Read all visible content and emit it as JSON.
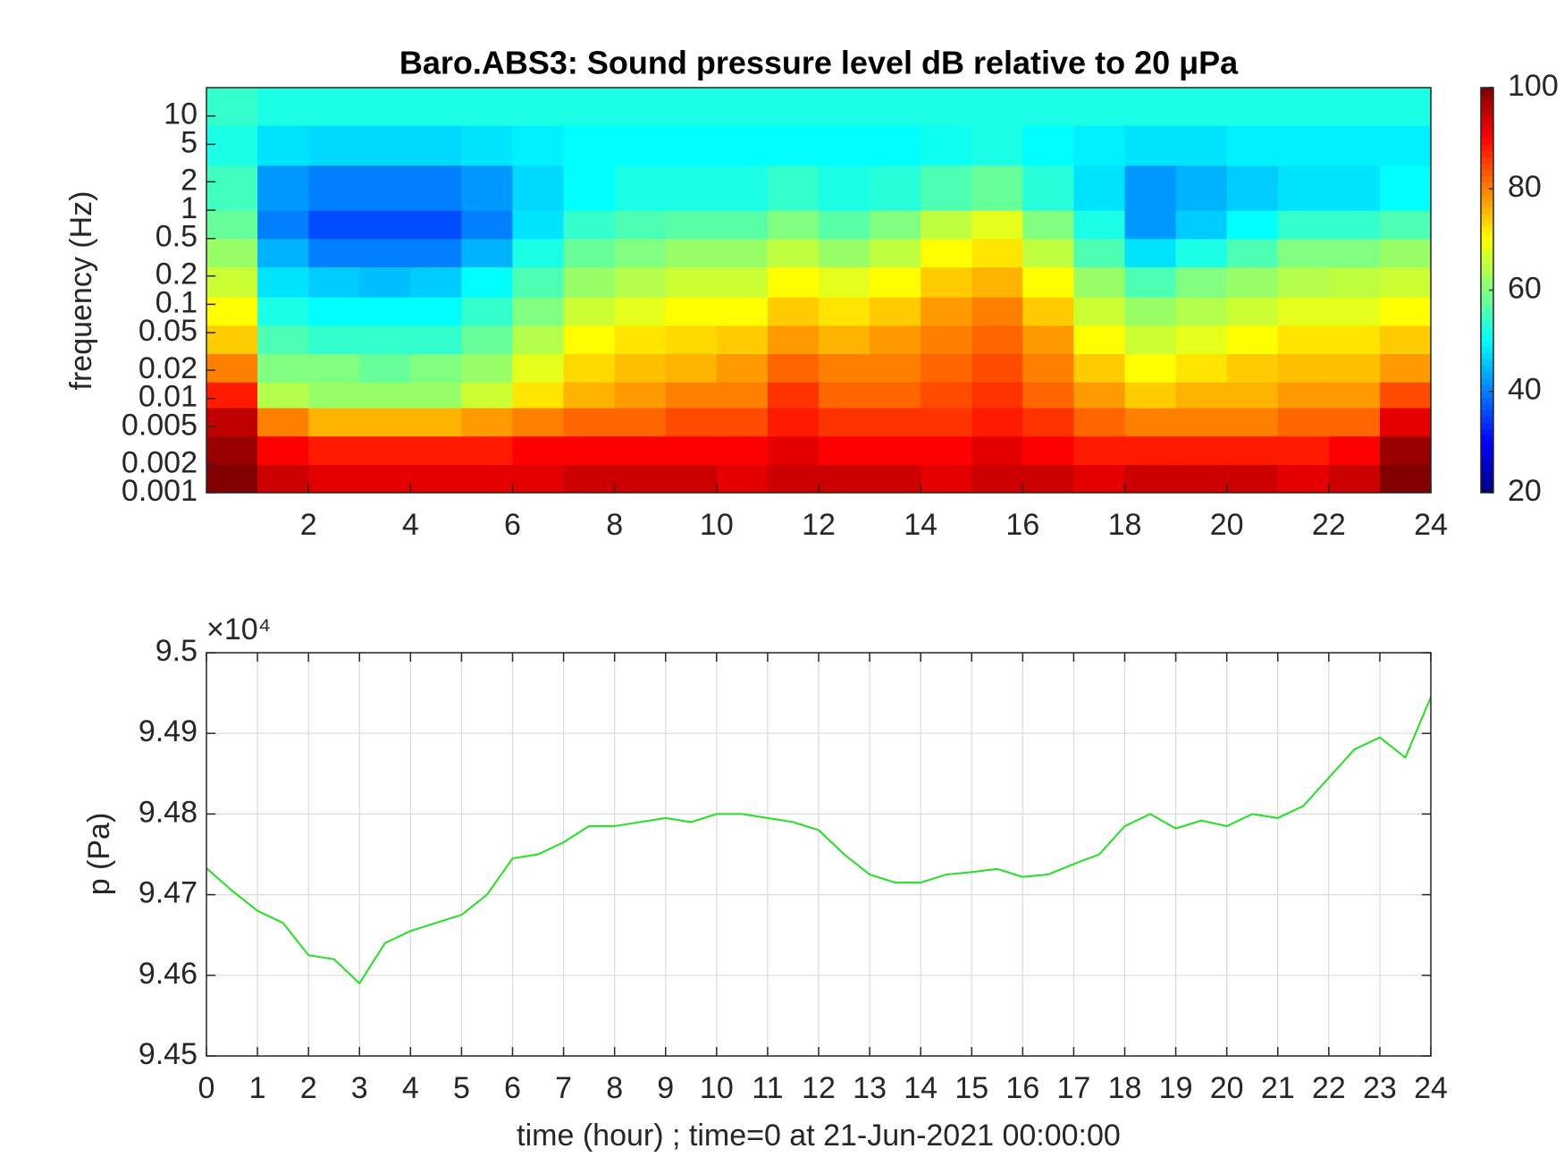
{
  "chart_data": [
    {
      "type": "heatmap",
      "title": "Baro.ABS3: Sound pressure level dB relative to 20 μPa",
      "y_label": "frequency (Hz)",
      "xbins": [
        0,
        1,
        2,
        3,
        4,
        5,
        6,
        7,
        8,
        9,
        10,
        11,
        12,
        13,
        14,
        15,
        16,
        17,
        18,
        19,
        20,
        21,
        22,
        23,
        24
      ],
      "ybins": [
        0.001,
        0.002,
        0.004,
        0.008,
        0.015,
        0.03,
        0.06,
        0.12,
        0.25,
        0.5,
        1,
        3,
        8,
        20
      ],
      "values": [
        [
          100,
          94,
          92,
          92,
          92,
          92,
          92,
          94,
          94,
          94,
          92,
          94,
          94,
          94,
          92,
          94,
          94,
          92,
          94,
          94,
          94,
          92,
          94,
          100
        ],
        [
          98,
          90,
          88,
          88,
          88,
          88,
          90,
          90,
          90,
          90,
          90,
          92,
          90,
          90,
          90,
          92,
          90,
          88,
          88,
          88,
          88,
          88,
          90,
          98
        ],
        [
          95,
          80,
          76,
          76,
          76,
          78,
          80,
          82,
          82,
          84,
          84,
          88,
          86,
          86,
          86,
          88,
          86,
          82,
          80,
          80,
          80,
          82,
          82,
          92
        ],
        [
          88,
          64,
          62,
          62,
          62,
          66,
          72,
          76,
          78,
          80,
          80,
          86,
          82,
          82,
          84,
          86,
          82,
          78,
          74,
          76,
          76,
          78,
          78,
          84
        ],
        [
          80,
          60,
          60,
          58,
          60,
          62,
          68,
          73,
          75,
          76,
          78,
          82,
          80,
          80,
          82,
          84,
          80,
          74,
          70,
          72,
          74,
          75,
          75,
          78
        ],
        [
          74,
          56,
          54,
          54,
          54,
          58,
          64,
          70,
          72,
          73,
          74,
          78,
          76,
          78,
          80,
          82,
          78,
          70,
          66,
          68,
          70,
          72,
          72,
          74
        ],
        [
          70,
          52,
          50,
          50,
          50,
          54,
          60,
          66,
          68,
          70,
          70,
          74,
          72,
          74,
          78,
          80,
          74,
          66,
          62,
          64,
          66,
          68,
          68,
          70
        ],
        [
          66,
          48,
          46,
          45,
          46,
          50,
          56,
          62,
          64,
          66,
          66,
          70,
          68,
          70,
          74,
          76,
          70,
          62,
          56,
          60,
          62,
          64,
          65,
          66
        ],
        [
          62,
          44,
          40,
          40,
          40,
          44,
          52,
          58,
          60,
          62,
          62,
          65,
          62,
          65,
          70,
          72,
          65,
          56,
          48,
          52,
          56,
          60,
          60,
          62
        ],
        [
          58,
          40,
          36,
          36,
          36,
          40,
          48,
          54,
          56,
          57,
          57,
          60,
          57,
          60,
          65,
          68,
          60,
          52,
          42,
          46,
          50,
          54,
          54,
          56
        ],
        [
          55,
          42,
          40,
          40,
          40,
          42,
          47,
          50,
          52,
          52,
          52,
          54,
          52,
          53,
          56,
          58,
          53,
          48,
          42,
          44,
          46,
          48,
          48,
          50
        ],
        [
          52,
          48,
          47,
          47,
          47,
          48,
          49,
          50,
          50,
          50,
          50,
          50,
          50,
          50,
          51,
          52,
          50,
          49,
          48,
          48,
          49,
          49,
          49,
          49
        ],
        [
          54,
          52,
          52,
          52,
          52,
          52,
          52,
          52,
          52,
          52,
          52,
          52,
          52,
          52,
          52,
          52,
          52,
          52,
          52,
          52,
          52,
          52,
          52,
          52
        ]
      ],
      "xlim": [
        0,
        24
      ],
      "xticks": [
        2,
        4,
        6,
        8,
        10,
        12,
        14,
        16,
        18,
        20,
        22,
        24
      ],
      "ylim": [
        0.001,
        20
      ],
      "yscale": "log",
      "yticks": [
        0.001,
        0.002,
        0.005,
        0.01,
        0.02,
        0.05,
        0.1,
        0.2,
        0.5,
        1,
        2,
        5,
        10
      ],
      "colormap": "jet",
      "clim": [
        20,
        100
      ],
      "cticks": [
        20,
        40,
        60,
        80,
        100
      ]
    },
    {
      "type": "line",
      "x_label": "time (hour) ; time=0 at 21-Jun-2021 00:00:00",
      "y_label": "p (Pa)",
      "y_multiplier": "×10⁴",
      "x": [
        0,
        0.5,
        1,
        1.5,
        2,
        2.5,
        3,
        3.5,
        4,
        4.5,
        5,
        5.5,
        6,
        6.5,
        7,
        7.5,
        8,
        8.5,
        9,
        9.5,
        10,
        10.5,
        11,
        11.5,
        12,
        12.5,
        13,
        13.5,
        14,
        14.5,
        15,
        15.5,
        16,
        16.5,
        17,
        17.5,
        18,
        18.5,
        19,
        19.5,
        20,
        20.5,
        21,
        21.5,
        22,
        22.5,
        23,
        23.5,
        24
      ],
      "series": [
        {
          "color": "#22e022",
          "values": [
            9.4733,
            9.4705,
            9.468,
            9.4665,
            9.4625,
            9.462,
            9.459,
            9.464,
            9.4655,
            9.4665,
            9.4675,
            9.47,
            9.4745,
            9.475,
            9.4765,
            9.4785,
            9.4785,
            9.479,
            9.4795,
            9.479,
            9.48,
            9.48,
            9.4795,
            9.479,
            9.478,
            9.475,
            9.4725,
            9.4715,
            9.4715,
            9.4725,
            9.4728,
            9.4732,
            9.4722,
            9.4725,
            9.4738,
            9.475,
            9.4785,
            9.48,
            9.4782,
            9.4792,
            9.4785,
            9.48,
            9.4795,
            9.481,
            9.4845,
            9.488,
            9.4895,
            9.487,
            9.4945
          ]
        }
      ],
      "xlim": [
        0,
        24
      ],
      "xticks": [
        0,
        1,
        2,
        3,
        4,
        5,
        6,
        7,
        8,
        9,
        10,
        11,
        12,
        13,
        14,
        15,
        16,
        17,
        18,
        19,
        20,
        21,
        22,
        23,
        24
      ],
      "ylim": [
        9.45,
        9.5
      ],
      "yticks": [
        9.45,
        9.46,
        9.47,
        9.48,
        9.49,
        9.5
      ],
      "grid": true
    }
  ]
}
